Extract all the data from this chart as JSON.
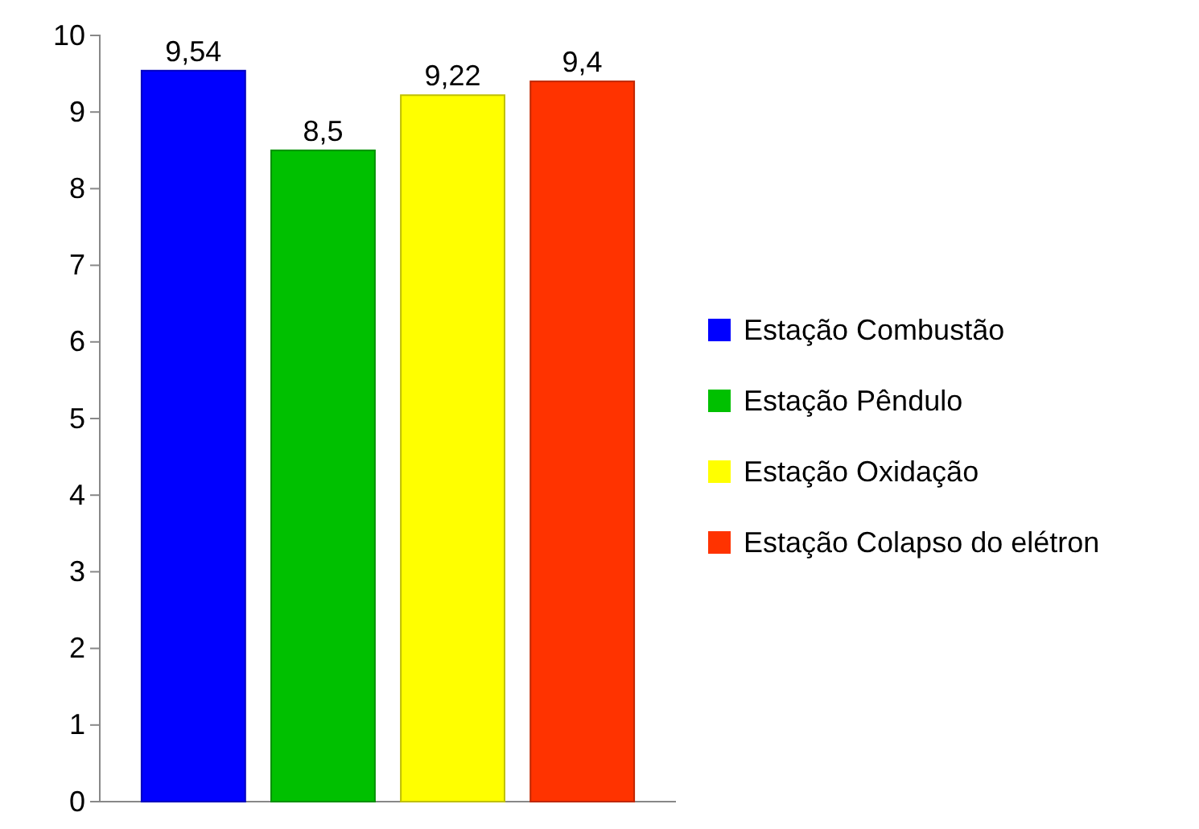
{
  "chart_data": {
    "type": "bar",
    "categories": [
      null
    ],
    "series": [
      {
        "name": "Estação Combustão",
        "color": "#0000ff",
        "values": [
          9.54
        ],
        "value_labels": [
          "9,54"
        ]
      },
      {
        "name": "Estação Pêndulo",
        "color": "#00c000",
        "values": [
          8.5
        ],
        "value_labels": [
          "8,5"
        ]
      },
      {
        "name": "Estação Oxidação",
        "color": "#ffff00",
        "values": [
          9.22
        ],
        "value_labels": [
          "9,22"
        ]
      },
      {
        "name": "Estação Colapso do elétron",
        "color": "#ff3300",
        "values": [
          9.4
        ],
        "value_labels": [
          "9,4"
        ]
      }
    ],
    "ylim": [
      0,
      10
    ],
    "yticks": [
      0,
      1,
      2,
      3,
      4,
      5,
      6,
      7,
      8,
      9,
      10
    ],
    "grid": false,
    "legend": "right"
  }
}
